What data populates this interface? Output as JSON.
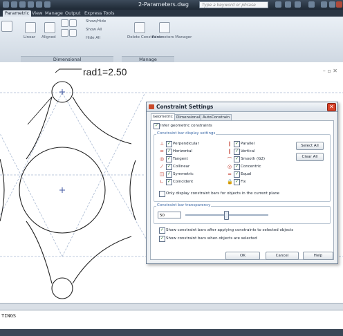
{
  "window": {
    "title": "2-Parameters.dwg",
    "search_placeholder": "Type a keyword or phrase"
  },
  "ribbon": {
    "tabs": [
      "Parametric",
      "View",
      "Manage",
      "Output",
      "Express Tools"
    ],
    "active_tab": "Parametric",
    "buttons": {
      "linear": "Linear",
      "aligned": "Aligned",
      "show_all": "Show All",
      "hide_all": "Hide All",
      "delete_constraints": "Delete Constraints",
      "parameters_manager": "Parameters Manager",
      "show_hide": "Show/Hide"
    },
    "panels": {
      "dimensional": "Dimensional",
      "manage": "Manage"
    }
  },
  "drawing": {
    "dimension_label": "rad1=2.50"
  },
  "dialog": {
    "title": "Constraint Settings",
    "tabs": [
      "Geometric",
      "Dimensional",
      "AutoConstrain"
    ],
    "infer_label": "Infer geometric constraints",
    "group_display_title": "Constraint bar display settings",
    "constraints_left": [
      "Perpendicular",
      "Horizontal",
      "Tangent",
      "Collinear",
      "Symmetric",
      "Coincident"
    ],
    "constraints_right": [
      "Parallel",
      "Vertical",
      "Smooth (G2)",
      "Concentric",
      "Equal",
      "Fix"
    ],
    "select_all": "Select All",
    "clear_all": "Clear All",
    "only_display_label": "Only display constraint bars for objects in the current plane",
    "transparency_title": "Constraint bar transparency",
    "transparency_value": "50",
    "show_after_apply": "Show constraint bars after applying constraints to selected objects",
    "show_when_selected": "Show constraint bars when objects are selected",
    "ok": "OK",
    "cancel": "Cancel",
    "help": "Help"
  },
  "command": {
    "text": "TINGS"
  }
}
